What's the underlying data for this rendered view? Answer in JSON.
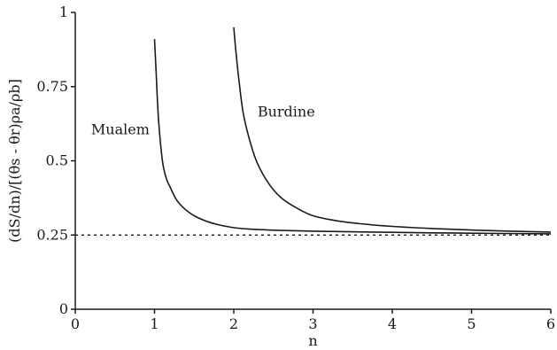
{
  "chart_data": {
    "type": "line",
    "title": "",
    "xlabel": "n",
    "ylabel": "(dS/dn)/[(θs - θr)ρa/ρb]",
    "xlim": [
      0,
      6
    ],
    "ylim": [
      0,
      1
    ],
    "x_ticks": [
      "0",
      "1",
      "2",
      "3",
      "4",
      "5",
      "6"
    ],
    "y_ticks": [
      "0",
      "0.25",
      "0.5",
      "0.75",
      "1"
    ],
    "grid": false,
    "series": [
      {
        "name": "Mualem",
        "x": [
          1.0,
          1.02,
          1.05,
          1.1,
          1.15,
          1.2,
          1.3,
          1.5,
          1.8,
          2.2,
          3.0,
          4.0,
          5.0,
          6.0
        ],
        "y": [
          0.91,
          0.8,
          0.64,
          0.5,
          0.44,
          0.41,
          0.36,
          0.315,
          0.285,
          0.27,
          0.263,
          0.259,
          0.256,
          0.254
        ]
      },
      {
        "name": "Burdine",
        "x": [
          2.0,
          2.03,
          2.07,
          2.12,
          2.2,
          2.3,
          2.45,
          2.6,
          2.8,
          3.0,
          3.3,
          3.6,
          4.0,
          4.5,
          5.0,
          5.5,
          6.0
        ],
        "y": [
          0.95,
          0.86,
          0.76,
          0.66,
          0.57,
          0.49,
          0.42,
          0.375,
          0.34,
          0.315,
          0.298,
          0.288,
          0.279,
          0.272,
          0.267,
          0.263,
          0.26
        ]
      },
      {
        "name": "",
        "style": "dotted",
        "x": [
          0,
          6
        ],
        "y": [
          0.25,
          0.25
        ]
      }
    ],
    "annotations": [
      {
        "text": "Mualem",
        "x": 0.2,
        "y": 0.59
      },
      {
        "text": "Burdine",
        "x": 2.3,
        "y": 0.65
      }
    ]
  }
}
